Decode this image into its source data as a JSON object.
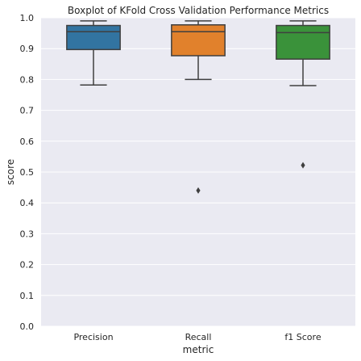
{
  "chart_data": {
    "type": "boxplot",
    "title": "Boxplot of KFold Cross Validation Performance Metrics",
    "xlabel": "metric",
    "ylabel": "score",
    "ylim": [
      0.0,
      1.0
    ],
    "yticks": [
      0.0,
      0.1,
      0.2,
      0.3,
      0.4,
      0.5,
      0.6,
      0.7,
      0.8,
      0.9,
      1.0
    ],
    "ytick_labels": [
      "0.0",
      "0.1",
      "0.2",
      "0.3",
      "0.4",
      "0.5",
      "0.6",
      "0.7",
      "0.8",
      "0.9",
      "1.0"
    ],
    "grid": true,
    "background": "#eaeaf2",
    "categories": [
      "Precision",
      "Recall",
      "f1 Score"
    ],
    "boxes": [
      {
        "category": "Precision",
        "color": "#3274a1",
        "whisker_low": 0.782,
        "q1": 0.897,
        "median": 0.955,
        "q3": 0.975,
        "whisker_high": 0.99,
        "outliers": []
      },
      {
        "category": "Recall",
        "color": "#e1812c",
        "whisker_low": 0.8,
        "q1": 0.877,
        "median": 0.955,
        "q3": 0.977,
        "whisker_high": 0.99,
        "outliers": [
          0.44
        ]
      },
      {
        "category": "f1 Score",
        "color": "#3a923a",
        "whisker_low": 0.78,
        "q1": 0.866,
        "median": 0.952,
        "q3": 0.975,
        "whisker_high": 0.99,
        "outliers": [
          0.522
        ]
      }
    ]
  }
}
